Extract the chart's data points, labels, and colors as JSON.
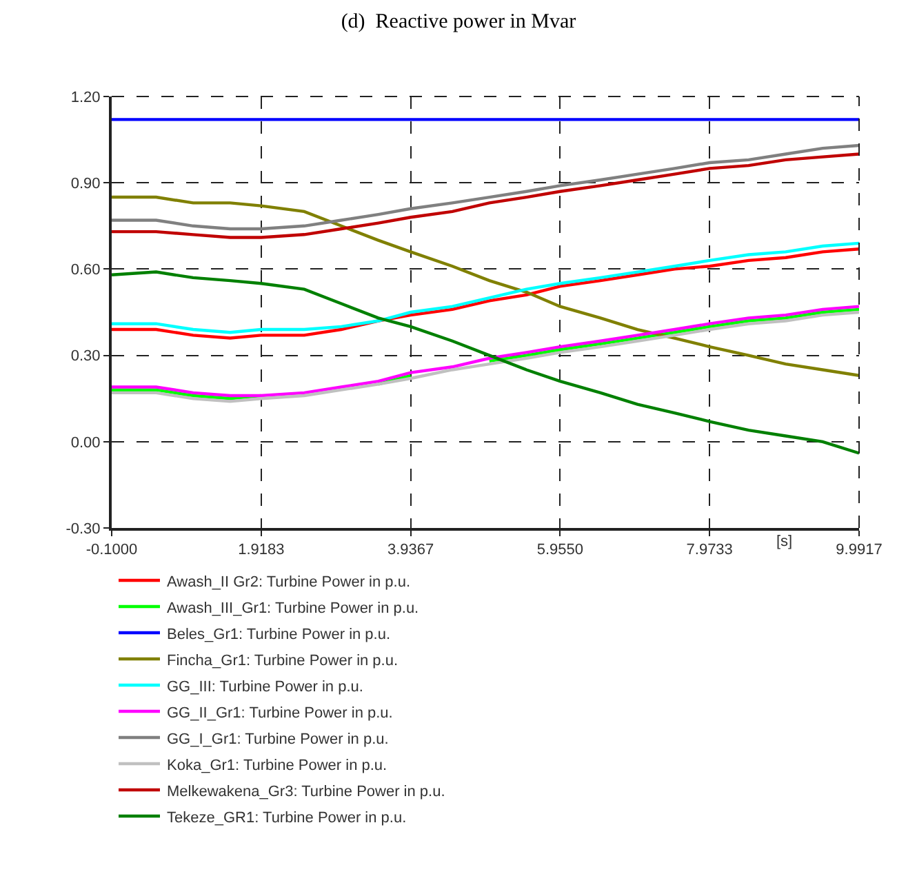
{
  "chart_data": {
    "type": "line",
    "title": "(d)  Reactive power in Mvar",
    "xlabel": "[s]",
    "x": [
      -0.1,
      0.5,
      1.0,
      1.5,
      1.9183,
      2.5,
      3.0,
      3.5,
      3.9367,
      4.5,
      5.0,
      5.5,
      5.955,
      6.5,
      7.0,
      7.5,
      7.9733,
      8.5,
      9.0,
      9.5,
      9.9917
    ],
    "series": [
      {
        "name": "Awash_II Gr2: Turbine Power in p.u.",
        "color": "#ff0000",
        "values": [
          0.39,
          0.39,
          0.37,
          0.36,
          0.37,
          0.37,
          0.39,
          0.42,
          0.44,
          0.46,
          0.49,
          0.51,
          0.54,
          0.56,
          0.58,
          0.6,
          0.61,
          0.63,
          0.64,
          0.66,
          0.67
        ]
      },
      {
        "name": "Awash_III_Gr1: Turbine Power in p.u.",
        "color": "#00ff00",
        "values": [
          0.18,
          0.18,
          0.16,
          0.15,
          0.16,
          null,
          null,
          0.2,
          0.23,
          null,
          0.28,
          0.3,
          0.32,
          0.34,
          0.36,
          0.38,
          0.4,
          0.42,
          0.43,
          0.45,
          0.46
        ]
      },
      {
        "name": "Beles_Gr1: Turbine Power in p.u.",
        "color": "#0000ff",
        "values": [
          1.12,
          1.12,
          1.12,
          1.12,
          1.12,
          1.12,
          1.12,
          1.12,
          1.12,
          1.12,
          1.12,
          1.12,
          1.12,
          1.12,
          1.12,
          1.12,
          1.12,
          1.12,
          1.12,
          1.12,
          1.12
        ]
      },
      {
        "name": "Fincha_Gr1: Turbine Power in p.u.",
        "color": "#808000",
        "values": [
          0.85,
          0.85,
          0.83,
          0.83,
          0.82,
          0.8,
          0.75,
          0.7,
          0.66,
          0.61,
          0.56,
          0.52,
          0.47,
          0.43,
          0.39,
          0.36,
          0.33,
          0.3,
          0.27,
          0.25,
          0.23
        ]
      },
      {
        "name": "GG_III: Turbine Power in p.u.",
        "color": "#00ffff",
        "values": [
          0.41,
          0.41,
          0.39,
          0.38,
          0.39,
          0.39,
          0.4,
          0.42,
          0.45,
          0.47,
          0.5,
          0.53,
          0.55,
          0.57,
          0.59,
          0.61,
          0.63,
          0.65,
          0.66,
          0.68,
          0.69
        ]
      },
      {
        "name": "GG_II_Gr1: Turbine Power in p.u.",
        "color": "#ff00ff",
        "values": [
          0.19,
          0.19,
          0.17,
          0.16,
          0.16,
          0.17,
          0.19,
          0.21,
          0.24,
          0.26,
          0.29,
          0.31,
          0.33,
          0.35,
          0.37,
          0.39,
          0.41,
          0.43,
          0.44,
          0.46,
          0.47
        ]
      },
      {
        "name": "GG_I_Gr1: Turbine Power in p.u.",
        "color": "#808080",
        "values": [
          0.77,
          0.77,
          0.75,
          0.74,
          0.74,
          0.75,
          0.77,
          0.79,
          0.81,
          0.83,
          0.85,
          0.87,
          0.89,
          0.91,
          0.93,
          0.95,
          0.97,
          0.98,
          1.0,
          1.02,
          1.03
        ]
      },
      {
        "name": "Koka_Gr1: Turbine Power in p.u.",
        "color": "#c0c0c0",
        "values": [
          0.17,
          0.17,
          0.15,
          0.14,
          0.15,
          0.16,
          0.18,
          0.2,
          0.22,
          0.25,
          0.27,
          0.29,
          0.31,
          0.33,
          0.35,
          0.37,
          0.39,
          0.41,
          0.42,
          0.44,
          0.45
        ]
      },
      {
        "name": "Melkewakena_Gr3: Turbine Power in p.u.",
        "color": "#c00000",
        "values": [
          0.73,
          0.73,
          0.72,
          0.71,
          0.71,
          0.72,
          0.74,
          0.76,
          0.78,
          0.8,
          0.83,
          0.85,
          0.87,
          0.89,
          0.91,
          0.93,
          0.95,
          0.96,
          0.98,
          0.99,
          1.0
        ]
      },
      {
        "name": "Tekeze_GR1: Turbine Power in p.u.",
        "color": "#008000",
        "values": [
          0.58,
          0.59,
          0.57,
          0.56,
          0.55,
          0.53,
          0.48,
          0.43,
          0.4,
          0.35,
          0.3,
          0.25,
          0.21,
          0.17,
          0.13,
          0.1,
          0.07,
          0.04,
          0.02,
          0.0,
          -0.04
        ]
      }
    ],
    "xlim": [
      -0.1,
      9.9917
    ],
    "xticks": [
      {
        "value": -0.1,
        "label": "-0.1000"
      },
      1.9183,
      3.9367,
      {
        "value": 5.955,
        "label": "5.9550"
      },
      7.9733,
      9.9917
    ],
    "ylim": [
      -0.3,
      1.2
    ],
    "yticks": [
      {
        "value": -0.3,
        "label": "-0.30"
      },
      {
        "value": 0,
        "label": "0.00"
      },
      {
        "value": 0.3,
        "label": "0.30"
      },
      {
        "value": 0.6,
        "label": "0.60"
      },
      {
        "value": 0.9,
        "label": "0.90"
      },
      {
        "value": 1.2,
        "label": "1.20"
      }
    ],
    "grid": true,
    "legend": "bottom",
    "marker": "none",
    "line_style": "solid"
  }
}
